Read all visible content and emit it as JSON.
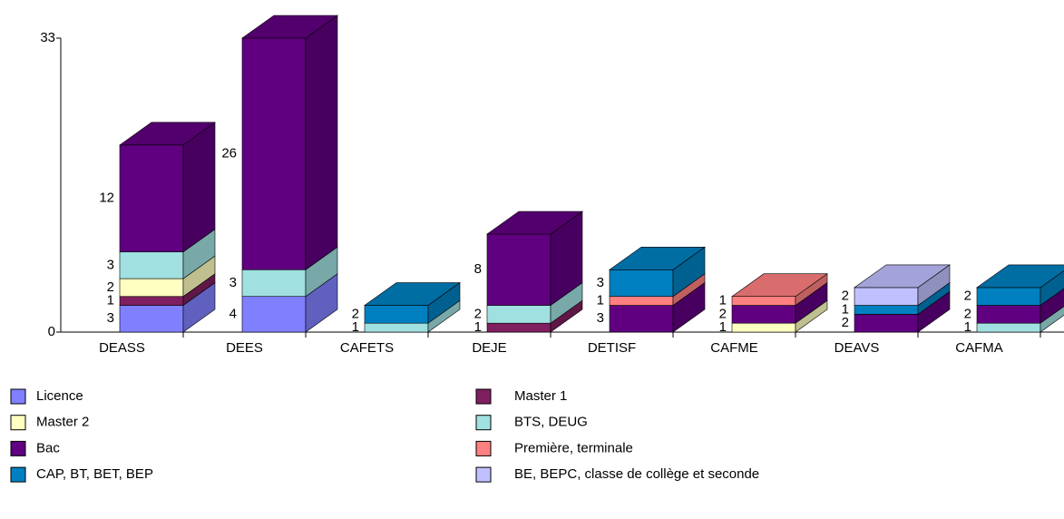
{
  "chart_data": {
    "type": "bar3d-stacked",
    "categories": [
      "DEASS",
      "DEES",
      "CAFETS",
      "DEJE",
      "DETISF",
      "CAFME",
      "DEAVS",
      "CAFMA"
    ],
    "series": [
      {
        "name": "Licence",
        "color": "#8080ff",
        "values": [
          3,
          4,
          0,
          0,
          0,
          0,
          0,
          0
        ]
      },
      {
        "name": "Master 1",
        "color": "#7f1f5f",
        "values": [
          1,
          0,
          0,
          1,
          0,
          0,
          0,
          0
        ]
      },
      {
        "name": "Master 2",
        "color": "#ffffc0",
        "values": [
          2,
          0,
          0,
          0,
          0,
          1,
          0,
          0
        ]
      },
      {
        "name": "BTS, DEUG",
        "color": "#a0e0e0",
        "values": [
          3,
          3,
          1,
          2,
          0,
          0,
          0,
          1
        ]
      },
      {
        "name": "Bac",
        "color": "#600080",
        "values": [
          12,
          26,
          0,
          8,
          3,
          2,
          2,
          2
        ]
      },
      {
        "name": "Première, terminale",
        "color": "#ff8080",
        "values": [
          0,
          0,
          0,
          0,
          1,
          1,
          0,
          0
        ]
      },
      {
        "name": "CAP, BT, BET, BEP",
        "color": "#0080c0",
        "values": [
          0,
          0,
          2,
          0,
          3,
          0,
          1,
          2
        ]
      },
      {
        "name": "BE, BEPC, classe de collège et seconde",
        "color": "#c0c0ff",
        "values": [
          0,
          0,
          0,
          0,
          0,
          0,
          2,
          0
        ]
      }
    ],
    "ylim": [
      0,
      33
    ],
    "yticks": [
      0,
      33
    ]
  }
}
